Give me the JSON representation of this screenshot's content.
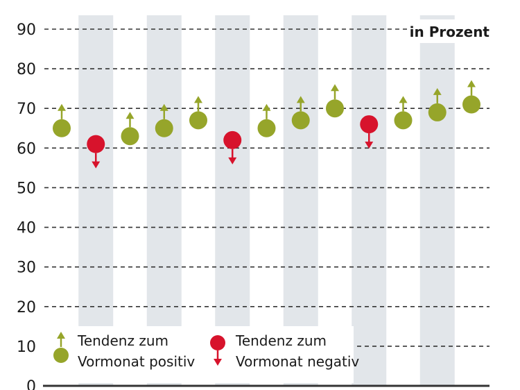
{
  "chart_data": {
    "type": "scatter",
    "unit_label": "in Prozent",
    "y_ticks": [
      "0",
      "10",
      "20",
      "30",
      "40",
      "50",
      "60",
      "70",
      "80",
      "90"
    ],
    "ylim": [
      0,
      90
    ],
    "grid": true,
    "points": [
      {
        "value": 65,
        "trend": "positive"
      },
      {
        "value": 61,
        "trend": "negative"
      },
      {
        "value": 63,
        "trend": "positive"
      },
      {
        "value": 65,
        "trend": "positive"
      },
      {
        "value": 67,
        "trend": "positive"
      },
      {
        "value": 62,
        "trend": "negative"
      },
      {
        "value": 65,
        "trend": "positive"
      },
      {
        "value": 67,
        "trend": "positive"
      },
      {
        "value": 70,
        "trend": "positive"
      },
      {
        "value": 66,
        "trend": "negative"
      },
      {
        "value": 67,
        "trend": "positive"
      },
      {
        "value": 69,
        "trend": "positive"
      },
      {
        "value": 71,
        "trend": "positive"
      }
    ],
    "legend": {
      "positive_line1": "Tendenz zum",
      "positive_line2": "Vormonat positiv",
      "negative_line1": "Tendenz zum",
      "negative_line2": "Vormonat negativ"
    },
    "colors": {
      "positive": "#96a52a",
      "negative": "#d7132c",
      "stripe": "#e2e6ea",
      "grid": "#333333",
      "axis": "#333333"
    }
  }
}
